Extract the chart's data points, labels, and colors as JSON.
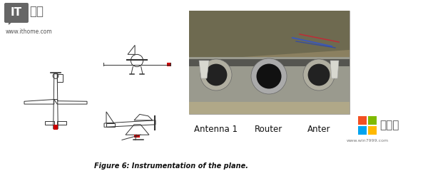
{
  "background_color": "#ffffff",
  "figure_width": 6.0,
  "figure_height": 2.47,
  "dpi": 100,
  "ithome_url": "www.ithome.com",
  "label_antenna1": "Antenna 1",
  "label_router": "Router",
  "label_anter": "Anter",
  "caption": "Figure 6: Instrumentation of the plane.",
  "systempowder_text": "系统粉",
  "systempowder_url": "www.win7999.com",
  "ms_colors": [
    "#f25022",
    "#7fba00",
    "#00a4ef",
    "#ffb900"
  ],
  "logo_bg_color": "#666666",
  "caption_fontsize": 7.0,
  "label_fontsize": 8.5
}
